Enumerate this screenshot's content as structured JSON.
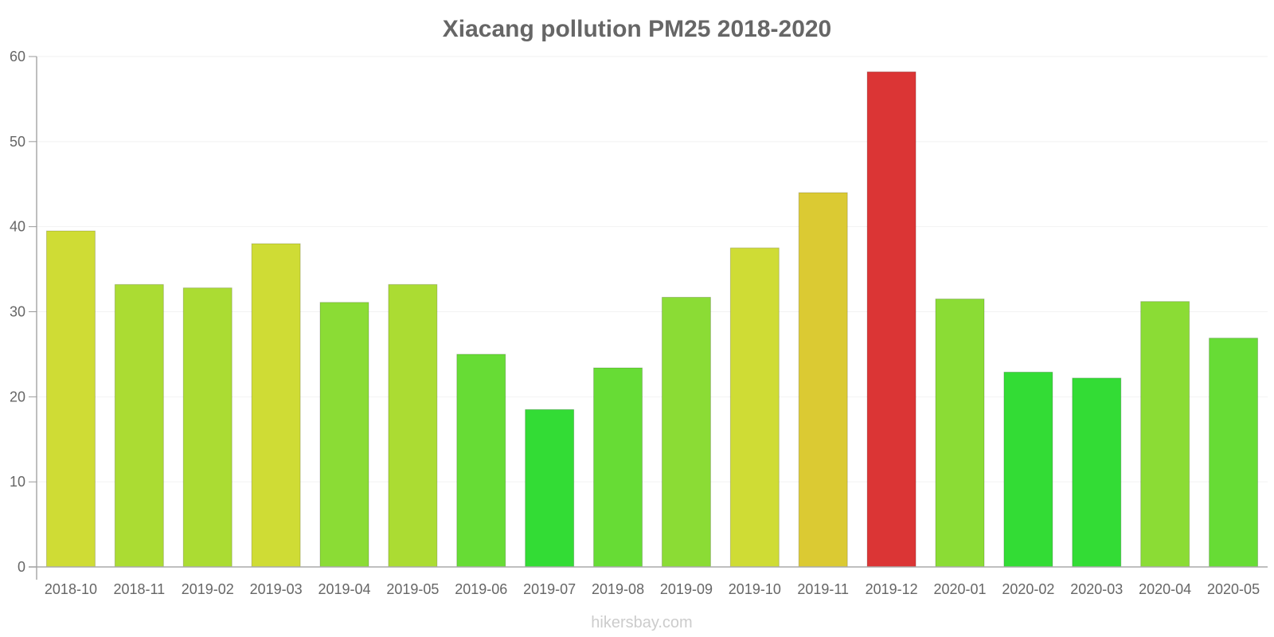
{
  "chart_data": {
    "type": "bar",
    "title": "Xiacang pollution PM25 2018-2020",
    "xlabel": "",
    "ylabel": "",
    "ylim": [
      0,
      60
    ],
    "yticks": [
      0,
      10,
      20,
      30,
      40,
      50,
      60
    ],
    "grid": true,
    "categories": [
      "2018-10",
      "2018-11",
      "2019-02",
      "2019-03",
      "2019-04",
      "2019-05",
      "2019-06",
      "2019-07",
      "2019-08",
      "2019-09",
      "2019-10",
      "2019-11",
      "2019-12",
      "2020-01",
      "2020-02",
      "2020-03",
      "2020-04",
      "2020-05"
    ],
    "values": [
      39.5,
      33.2,
      32.8,
      38,
      31.1,
      33.2,
      25,
      18.5,
      23.4,
      31.7,
      37.5,
      44,
      58.2,
      31.5,
      22.9,
      22.2,
      31.2,
      26.9
    ],
    "colors": [
      "#cfdc35",
      "#abdc33",
      "#abdc33",
      "#cfdc35",
      "#8bdc35",
      "#abdc33",
      "#67dc35",
      "#33dc35",
      "#67dc35",
      "#8bdc35",
      "#cfdc35",
      "#dbca33",
      "#db3535",
      "#8bdc35",
      "#33dc35",
      "#33dc35",
      "#8bdc35",
      "#67dc35"
    ]
  },
  "watermark": "hikersbay.com"
}
